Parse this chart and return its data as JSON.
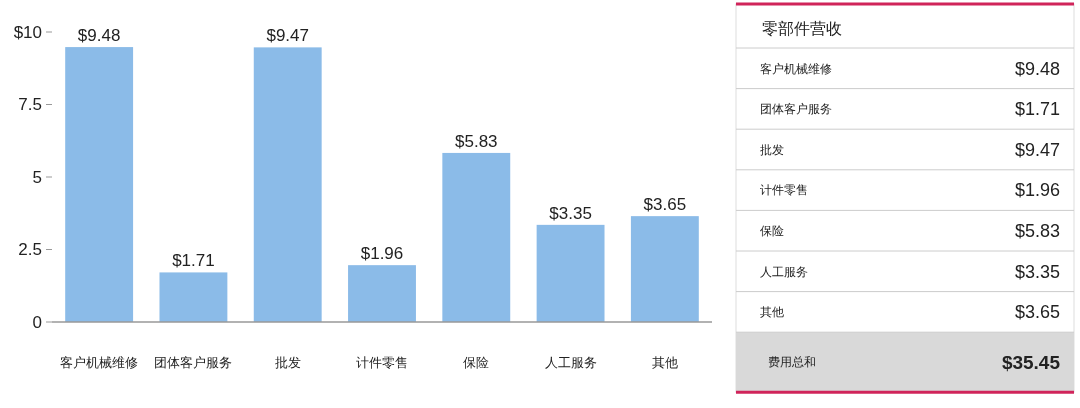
{
  "chart_data": [
    {
      "type": "bar",
      "categories": [
        "客户机械维修",
        "团体客户服务",
        "批发",
        "计件零售",
        "保险",
        "人工服务",
        "其他"
      ],
      "values": [
        9.48,
        1.71,
        9.47,
        1.96,
        5.83,
        3.35,
        3.65
      ],
      "color": "#8bbbe8",
      "value_labels": [
        "$9.48",
        "$1.71",
        "$9.47",
        "$1.96",
        "$5.83",
        "$3.35",
        "$3.65"
      ],
      "ylim": [
        0,
        10
      ],
      "yticks": [
        0,
        2.5,
        5,
        7.5,
        {
          "value": 10,
          "label": "$10"
        }
      ]
    },
    {
      "type": "other",
      "title": "零部件营收",
      "categories": [
        "客户机械维修",
        "团体客户服务",
        "批发",
        "计件零售",
        "保险",
        "人工服务",
        "其他",
        "费用总和"
      ],
      "value_labels": [
        "$9.48",
        "$1.71",
        "$9.47",
        "$1.96",
        "$5.83",
        "$3.35",
        "$3.65",
        "$35.45"
      ]
    }
  ]
}
